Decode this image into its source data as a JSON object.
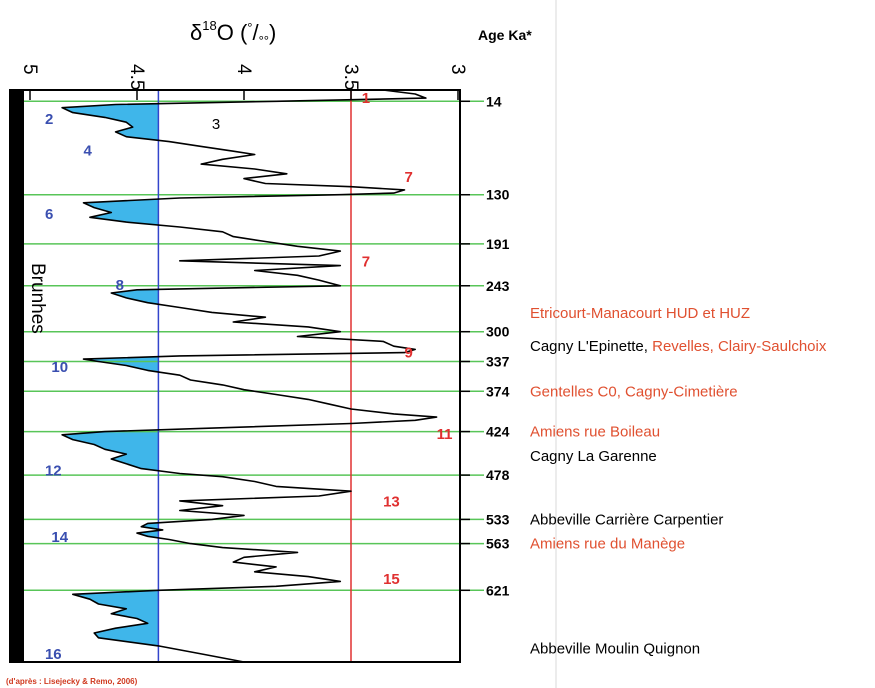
{
  "chart_data": {
    "type": "line",
    "title": "",
    "xlabel_main": "δ",
    "xlabel_sup": "18",
    "xlabel_rest": "O (",
    "xlabel_unit_sup": "°",
    "xlabel_unit_slash": "/",
    "xlabel_unit_sub": "°°",
    "xlabel_close": ")",
    "ylabel": "Age Ka*",
    "x_reversed": true,
    "xlim": [
      5.0,
      3.0
    ],
    "x_ticks": [
      "5",
      "4.5",
      "4",
      "3.5",
      "3"
    ],
    "x_tick_values": [
      5.0,
      4.5,
      4.0,
      3.5,
      3.0
    ],
    "ylim": [
      0,
      710
    ],
    "y_direction": "age increases downward",
    "age_ticks": [
      14,
      130,
      191,
      243,
      300,
      337,
      374,
      424,
      478,
      533,
      563,
      621
    ],
    "reference_lines": [
      {
        "value": 4.4,
        "color": "#3344cc",
        "label": ""
      },
      {
        "value": 3.5,
        "color": "#e03030",
        "label": ""
      }
    ],
    "series": [
      {
        "values": [
          [
            0,
            3.35
          ],
          [
            5,
            3.2
          ],
          [
            10,
            3.15
          ],
          [
            14,
            3.85
          ],
          [
            18,
            4.6
          ],
          [
            22,
            4.85
          ],
          [
            28,
            4.8
          ],
          [
            34,
            4.65
          ],
          [
            40,
            4.55
          ],
          [
            46,
            4.52
          ],
          [
            52,
            4.6
          ],
          [
            58,
            4.55
          ],
          [
            64,
            4.35
          ],
          [
            70,
            4.2
          ],
          [
            76,
            4.05
          ],
          [
            80,
            3.95
          ],
          [
            86,
            4.1
          ],
          [
            92,
            4.2
          ],
          [
            98,
            3.95
          ],
          [
            104,
            3.8
          ],
          [
            110,
            4.0
          ],
          [
            116,
            3.9
          ],
          [
            120,
            3.5
          ],
          [
            124,
            3.25
          ],
          [
            128,
            3.3
          ],
          [
            130,
            3.55
          ],
          [
            134,
            4.3
          ],
          [
            140,
            4.75
          ],
          [
            146,
            4.7
          ],
          [
            152,
            4.62
          ],
          [
            158,
            4.72
          ],
          [
            164,
            4.55
          ],
          [
            170,
            4.3
          ],
          [
            176,
            4.1
          ],
          [
            182,
            4.05
          ],
          [
            188,
            3.9
          ],
          [
            194,
            3.75
          ],
          [
            200,
            3.55
          ],
          [
            206,
            3.65
          ],
          [
            212,
            4.3
          ],
          [
            218,
            3.55
          ],
          [
            224,
            3.95
          ],
          [
            230,
            3.75
          ],
          [
            236,
            3.65
          ],
          [
            243,
            3.55
          ],
          [
            248,
            4.5
          ],
          [
            252,
            4.62
          ],
          [
            258,
            4.55
          ],
          [
            264,
            4.45
          ],
          [
            270,
            4.3
          ],
          [
            276,
            4.15
          ],
          [
            282,
            3.9
          ],
          [
            288,
            4.05
          ],
          [
            294,
            3.7
          ],
          [
            300,
            3.55
          ],
          [
            306,
            3.75
          ],
          [
            312,
            3.35
          ],
          [
            318,
            3.3
          ],
          [
            322,
            3.2
          ],
          [
            326,
            3.25
          ],
          [
            330,
            4.3
          ],
          [
            334,
            4.75
          ],
          [
            337,
            4.68
          ],
          [
            342,
            4.55
          ],
          [
            348,
            4.45
          ],
          [
            354,
            4.3
          ],
          [
            360,
            4.25
          ],
          [
            366,
            4.1
          ],
          [
            372,
            4.0
          ],
          [
            378,
            3.85
          ],
          [
            384,
            3.7
          ],
          [
            390,
            3.6
          ],
          [
            396,
            3.5
          ],
          [
            402,
            3.3
          ],
          [
            406,
            3.1
          ],
          [
            410,
            3.2
          ],
          [
            414,
            3.5
          ],
          [
            420,
            4.2
          ],
          [
            424,
            4.65
          ],
          [
            428,
            4.85
          ],
          [
            434,
            4.8
          ],
          [
            440,
            4.7
          ],
          [
            446,
            4.65
          ],
          [
            452,
            4.55
          ],
          [
            458,
            4.62
          ],
          [
            464,
            4.55
          ],
          [
            470,
            4.48
          ],
          [
            476,
            4.3
          ],
          [
            480,
            4.1
          ],
          [
            486,
            3.95
          ],
          [
            492,
            3.85
          ],
          [
            498,
            3.5
          ],
          [
            504,
            3.65
          ],
          [
            510,
            4.3
          ],
          [
            516,
            4.1
          ],
          [
            522,
            4.3
          ],
          [
            528,
            4.0
          ],
          [
            533,
            4.15
          ],
          [
            538,
            4.45
          ],
          [
            542,
            4.48
          ],
          [
            546,
            4.38
          ],
          [
            550,
            4.5
          ],
          [
            554,
            4.45
          ],
          [
            558,
            4.35
          ],
          [
            563,
            4.25
          ],
          [
            568,
            4.1
          ],
          [
            574,
            3.75
          ],
          [
            580,
            4.0
          ],
          [
            586,
            4.05
          ],
          [
            592,
            3.85
          ],
          [
            598,
            3.95
          ],
          [
            604,
            3.7
          ],
          [
            610,
            3.55
          ],
          [
            616,
            3.85
          ],
          [
            621,
            4.4
          ],
          [
            626,
            4.8
          ],
          [
            632,
            4.72
          ],
          [
            638,
            4.68
          ],
          [
            644,
            4.55
          ],
          [
            650,
            4.62
          ],
          [
            656,
            4.5
          ],
          [
            662,
            4.45
          ],
          [
            668,
            4.6
          ],
          [
            674,
            4.7
          ],
          [
            680,
            4.68
          ],
          [
            690,
            4.4
          ],
          [
            700,
            4.2
          ],
          [
            710,
            4.0
          ]
        ]
      }
    ]
  },
  "brunhes_label": "Brunhes",
  "stages_red": [
    {
      "label": "1",
      "age": 10,
      "x": 3.45
    },
    {
      "label": "7",
      "age": 108,
      "x": 3.25
    },
    {
      "label": "7",
      "age": 213,
      "x": 3.45
    },
    {
      "label": "9",
      "age": 326,
      "x": 3.25
    },
    {
      "label": "11",
      "age": 427,
      "x": 3.1
    },
    {
      "label": "13",
      "age": 511,
      "x": 3.35
    },
    {
      "label": "15",
      "age": 607,
      "x": 3.35
    }
  ],
  "stages_blue": [
    {
      "label": "2",
      "age": 36,
      "x": 4.93
    },
    {
      "label": "4",
      "age": 75,
      "x": 4.75
    },
    {
      "label": "6",
      "age": 154,
      "x": 4.93
    },
    {
      "label": "8",
      "age": 242,
      "x": 4.6
    },
    {
      "label": "10",
      "age": 344,
      "x": 4.9
    },
    {
      "label": "12",
      "age": 472,
      "x": 4.93
    },
    {
      "label": "14",
      "age": 555,
      "x": 4.9
    },
    {
      "label": "16",
      "age": 700,
      "x": 4.93
    }
  ],
  "stages_black": [
    {
      "label": "3",
      "age": 42,
      "x": 4.15
    }
  ],
  "sites": [
    {
      "age": 277,
      "segments": [
        {
          "text": "Etricourt-Manacourt HUD et HUZ",
          "color": "#e05030"
        }
      ]
    },
    {
      "age": 318,
      "segments": [
        {
          "text": "Cagny L'Epinette, ",
          "color": "#000000"
        },
        {
          "text": "Revelles, Clairy-Saulchoix",
          "color": "#e05030"
        }
      ]
    },
    {
      "age": 374,
      "segments": [
        {
          "text": "Gentelles C0, Cagny-Cimetière",
          "color": "#e05030"
        }
      ]
    },
    {
      "age": 424,
      "segments": [
        {
          "text": "Amiens rue Boileau",
          "color": "#e05030"
        }
      ]
    },
    {
      "age": 454,
      "segments": [
        {
          "text": "Cagny La Garenne",
          "color": "#000000"
        }
      ]
    },
    {
      "age": 533,
      "segments": [
        {
          "text": "Abbeville Carrière Carpentier",
          "color": "#000000"
        }
      ]
    },
    {
      "age": 563,
      "segments": [
        {
          "text": "Amiens rue du Manège",
          "color": "#e05030"
        }
      ]
    },
    {
      "age": 693,
      "segments": [
        {
          "text": "Abbeville Moulin Quignon",
          "color": "#000000"
        }
      ]
    }
  ],
  "source_note": "(d'après : Lisejecky & Remo, 2006)",
  "colors": {
    "stage_red": "#e03030",
    "stage_blue": "#3a4fb0",
    "site_red": "#e05030",
    "fill": "#3fb6ea",
    "age_line": "#58c558",
    "curve": "#000000",
    "source": "#d03a20"
  }
}
